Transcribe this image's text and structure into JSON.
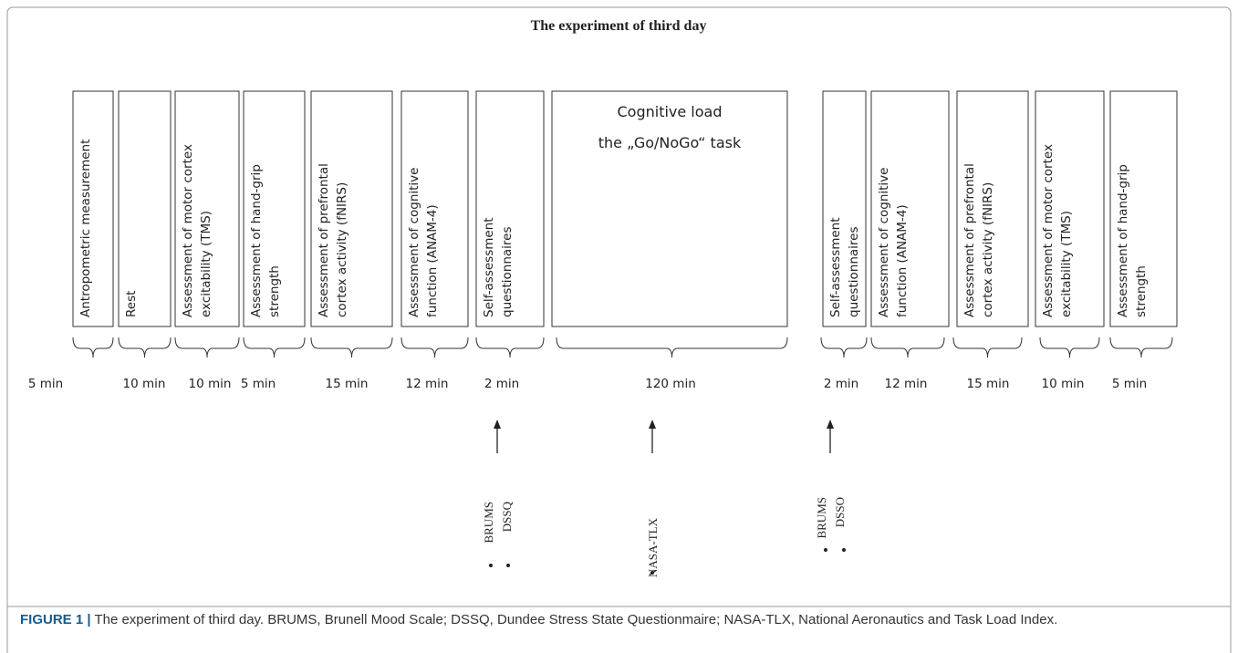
{
  "title": "The experiment of third day",
  "steps": [
    {
      "lines": [
        "Antropometric measurement"
      ],
      "duration": "5 min"
    },
    {
      "lines": [
        "Rest"
      ],
      "duration": "10 min"
    },
    {
      "lines": [
        "Assessment of motor cortex",
        "excitability (TMS)"
      ],
      "duration": "10 min"
    },
    {
      "lines": [
        "Assessment of hand-grip",
        "strength"
      ],
      "duration": "5 min"
    },
    {
      "lines": [
        "Assessment of prefrontal",
        "cortex activity (fNIRS)"
      ],
      "duration": "15 min"
    },
    {
      "lines": [
        "Assessment of cognitive",
        "function (ANAM-4)"
      ],
      "duration": "12 min"
    },
    {
      "lines": [
        "Self-assessment",
        "questionnaires"
      ],
      "duration": "2 min"
    },
    {
      "lines": [
        "Cognitive load",
        "the „Go/NoGo“ task"
      ],
      "duration": "120 min"
    },
    {
      "lines": [
        "Self-assessment",
        "questionnaires"
      ],
      "duration": "2 min"
    },
    {
      "lines": [
        "Assessment of cognitive",
        "function (ANAM-4)"
      ],
      "duration": "12 min"
    },
    {
      "lines": [
        "Assessment of prefrontal",
        "cortex activity (fNIRS)"
      ],
      "duration": "15 min"
    },
    {
      "lines": [
        "Assessment of motor cortex",
        "excitability (TMS)"
      ],
      "duration": "10 min"
    },
    {
      "lines": [
        "Assessment of hand-grip",
        "strength"
      ],
      "duration": "5 min"
    }
  ],
  "measures": [
    {
      "labels": [
        "BRUMS",
        "DSSQ"
      ]
    },
    {
      "labels": [
        "NASA-TLX"
      ]
    },
    {
      "labels": [
        "BRUMS",
        "DSSO"
      ]
    }
  ],
  "caption": {
    "label": "FIGURE 1 |",
    "text": " The experiment of third day. BRUMS, Brunell Mood Scale; DSSQ, Dundee Stress State Questionmaire; NASA-TLX, National Aeronautics and Task Load Index."
  }
}
